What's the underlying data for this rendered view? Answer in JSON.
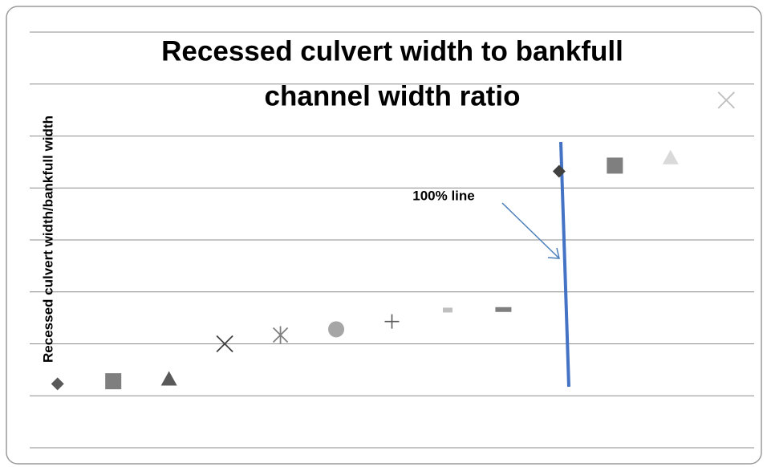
{
  "chart_data": {
    "type": "scatter",
    "title": [
      "Recessed culvert width to bankfull",
      "channel width ratio"
    ],
    "y_label": "Recessed culvert width/bankfull width",
    "annotation": "100% line",
    "x": [
      1,
      2,
      3,
      4,
      5,
      6,
      7,
      8,
      9,
      10,
      11,
      12,
      13
    ],
    "values": [
      1.23,
      1.28,
      1.32,
      2.0,
      2.17,
      2.28,
      2.43,
      2.65,
      2.66,
      5.32,
      5.43,
      5.58,
      6.69
    ],
    "markers": [
      "diamond",
      "square",
      "triangle",
      "x",
      "asterisk",
      "circle",
      "plus",
      "dash-small",
      "dash",
      "diamond",
      "square",
      "triangle",
      "x"
    ],
    "colors": [
      "#595959",
      "#7f7f7f",
      "#595959",
      "#404040",
      "#7f7f7f",
      "#a6a6a6",
      "#595959",
      "#bfbfbf",
      "#7f7f7f",
      "#404040",
      "#7f7f7f",
      "#d9d9d9",
      "#bfbfbf"
    ],
    "xlim": [
      0.5,
      13.5
    ],
    "ylim": [
      0,
      8
    ],
    "yticks": [
      0,
      1,
      2,
      3,
      4,
      5,
      6,
      7,
      8
    ],
    "grid": true
  }
}
